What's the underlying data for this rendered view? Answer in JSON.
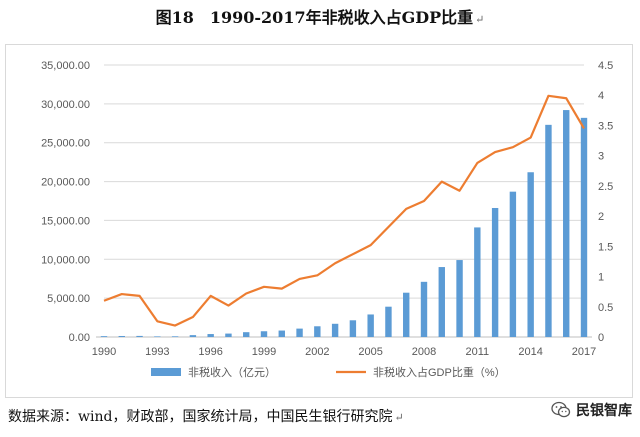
{
  "title": "图18　1990-2017年非税收入占GDP比重",
  "title_mark": "↵",
  "source": "数据来源：wind，财政部，国家统计局，中国民生银行研究院",
  "source_mark": "↵",
  "brand": {
    "name": "民银智库",
    "icon": "wechat-icon"
  },
  "colors": {
    "bar": "#5b9bd5",
    "line": "#ed7d31",
    "grid": "#d9d9d9",
    "axis_text": "#595959"
  },
  "chart_data": {
    "type": "bar+line",
    "x": [
      1990,
      1991,
      1992,
      1993,
      1994,
      1995,
      1996,
      1997,
      1998,
      1999,
      2000,
      2001,
      2002,
      2003,
      2004,
      2005,
      2006,
      2007,
      2008,
      2009,
      2010,
      2011,
      2012,
      2013,
      2014,
      2015,
      2016,
      2017
    ],
    "x_tick_labels": [
      "1990",
      "1993",
      "1996",
      "1999",
      "2002",
      "2005",
      "2008",
      "2011",
      "2014",
      "2017"
    ],
    "y_left": {
      "min": 0,
      "max": 35000,
      "ticks": [
        "0.00",
        "5,000.00",
        "10,000.00",
        "15,000.00",
        "20,000.00",
        "25,000.00",
        "30,000.00",
        "35,000.00"
      ]
    },
    "y_right": {
      "min": 0,
      "max": 4.5,
      "ticks": [
        "0",
        "0.5",
        "1",
        "1.5",
        "2",
        "2.5",
        "3",
        "3.5",
        "4",
        "4.5"
      ]
    },
    "series": [
      {
        "name": "非税收入（亿元）",
        "type": "bar",
        "axis": "left",
        "values": [
          110,
          130,
          140,
          80,
          90,
          240,
          380,
          440,
          620,
          740,
          830,
          1080,
          1380,
          1700,
          2150,
          2900,
          3900,
          5700,
          7100,
          9000,
          9900,
          14100,
          16600,
          18700,
          21200,
          27300,
          29200,
          28200
        ]
      },
      {
        "name": "非税收入占GDP比重（%）",
        "type": "line",
        "axis": "right",
        "values": [
          0.6,
          0.71,
          0.68,
          0.26,
          0.19,
          0.33,
          0.68,
          0.52,
          0.72,
          0.83,
          0.8,
          0.96,
          1.02,
          1.22,
          1.37,
          1.52,
          1.82,
          2.12,
          2.25,
          2.57,
          2.42,
          2.88,
          3.06,
          3.14,
          3.3,
          3.99,
          3.95,
          3.45
        ]
      }
    ],
    "grid": true,
    "legend_position": "bottom"
  }
}
